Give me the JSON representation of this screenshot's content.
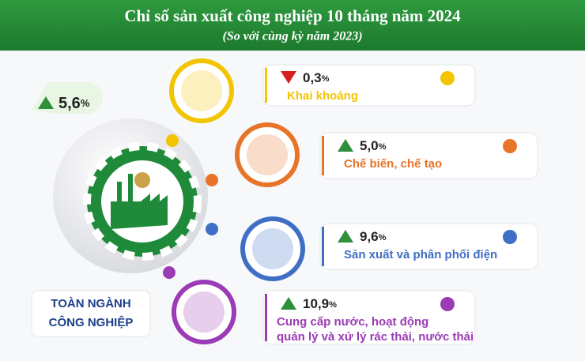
{
  "header": {
    "title": "Chỉ số sản xuất công nghiệp 10 tháng năm 2024",
    "subtitle": "(So với cùng kỳ năm 2023)"
  },
  "percent_sign": "%",
  "total": {
    "change": "5,6",
    "trend": "up",
    "label_lines": [
      "TOÀN NGÀNH",
      "CÔNG NGHIỆP"
    ]
  },
  "items": [
    {
      "change": "0,3",
      "trend": "down",
      "label_lines": [
        "Khai khoáng"
      ],
      "color": "#f2c500"
    },
    {
      "change": "5,0",
      "trend": "up",
      "label_lines": [
        "Chế biến, chế tạo"
      ],
      "color": "#e8742a"
    },
    {
      "change": "9,6",
      "trend": "up",
      "label_lines": [
        "Sản xuất và phân phối điện"
      ],
      "color": "#3f6fc4"
    },
    {
      "change": "10,9",
      "trend": "up",
      "label_lines": [
        "Cung cấp nước, hoạt động",
        "quản lý và xử lý rác thải, nước thải"
      ],
      "color": "#9b3bb5"
    }
  ]
}
